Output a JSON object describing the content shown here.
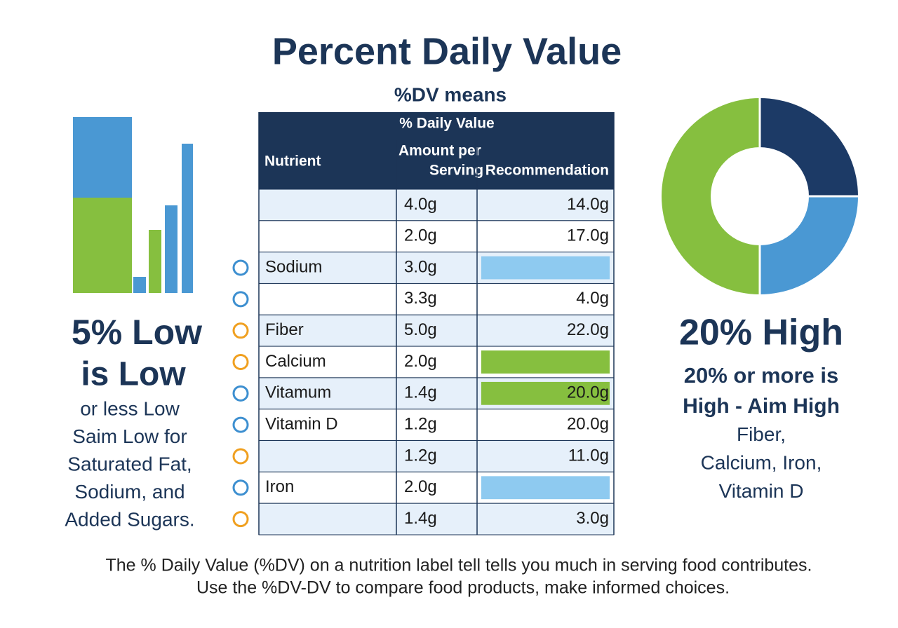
{
  "header": {
    "title": "Percent Daily Value",
    "subtitle": "%DV means"
  },
  "left": {
    "heading": [
      "5% Low",
      "is Low"
    ],
    "lines": [
      "or less Low",
      "Saim Low for",
      "Saturated Fat,",
      "Sodium, and",
      "Added Sugars."
    ]
  },
  "right": {
    "heading": "20% High",
    "subheading": "20% or more is",
    "lines": [
      "High - Aim High",
      "Fiber,",
      "Calcium, Iron,",
      "Vitamin D"
    ]
  },
  "table": {
    "group_header": "% Daily Value",
    "columns": [
      "Nutrient",
      [
        "Amount per",
        "Serving"
      ],
      "Recommendation"
    ],
    "rows": [
      {
        "nutrient": null,
        "amount": "4.0g",
        "recommendation": "14.0g",
        "highlight": null
      },
      {
        "nutrient": null,
        "amount": "2.0g",
        "recommendation": "17.0g",
        "highlight": null
      },
      {
        "nutrient": "Sodium",
        "amount": "3.0g",
        "recommendation": null,
        "highlight": "#8ecaf0"
      },
      {
        "nutrient": null,
        "amount": "3.3g",
        "recommendation": "4.0g",
        "highlight": null
      },
      {
        "nutrient": "Fiber",
        "amount": "5.0g",
        "recommendation": "22.0g",
        "highlight": null
      },
      {
        "nutrient": "Calcium",
        "amount": "2.0g",
        "recommendation": null,
        "highlight": "#86bf3f"
      },
      {
        "nutrient": "Vitamum",
        "amount": "1.4g",
        "recommendation": "20.0g",
        "highlight": "#86bf3f"
      },
      {
        "nutrient": "Vitamin D",
        "amount": "1.2g",
        "recommendation": "20.0g",
        "highlight": null
      },
      {
        "nutrient": null,
        "amount": "1.2g",
        "recommendation": "11.0g",
        "highlight": null
      },
      {
        "nutrient": "Iron",
        "amount": "2.0g",
        "recommendation": null,
        "highlight": "#8ecaf0"
      },
      {
        "nutrient": null,
        "amount": "1.4g",
        "recommendation": "3.0g",
        "highlight": null
      }
    ]
  },
  "footer": [
    "The % Daily Value (%DV) on a nutrition label tell tells you much in serving food contributes.",
    "Use the %DV-DV to compare food products, make informed choices."
  ]
}
